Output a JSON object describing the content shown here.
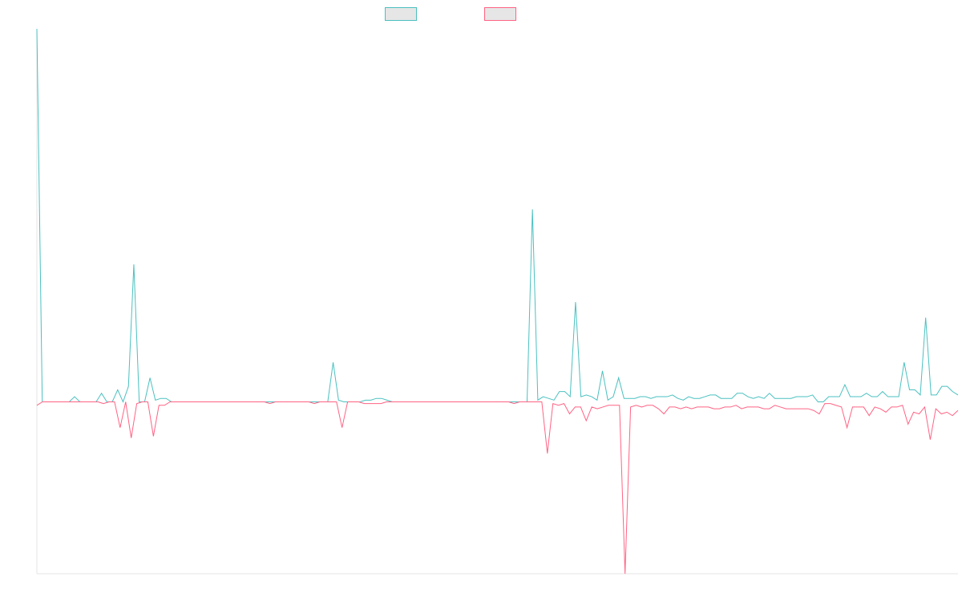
{
  "chart_data": {
    "type": "line",
    "title": "",
    "xlabel": "",
    "ylabel": "",
    "grid": false,
    "legend_position": "top-center",
    "ylim": [
      -100,
      217
    ],
    "series": [
      {
        "color": "#4bc0c0",
        "values": [
          217,
          0,
          0,
          0,
          0,
          0,
          0,
          3,
          0,
          0,
          0,
          0,
          5,
          0,
          0,
          7,
          0,
          9,
          80,
          0,
          0,
          14,
          1,
          2,
          2,
          0,
          0,
          0,
          0,
          0,
          0,
          0,
          0,
          0,
          0,
          0,
          0,
          0,
          0,
          0,
          0,
          0,
          0,
          0,
          0,
          0,
          0,
          0,
          0,
          0,
          0,
          0,
          0,
          0,
          0,
          23,
          1,
          0,
          0,
          0,
          0,
          1,
          1,
          2,
          2,
          1,
          0,
          0,
          0,
          0,
          0,
          0,
          0,
          0,
          0,
          0,
          0,
          0,
          0,
          0,
          0,
          0,
          0,
          0,
          0,
          0,
          0,
          0,
          0,
          0,
          0,
          0,
          112,
          1,
          3,
          2,
          1,
          6,
          6,
          3,
          58,
          3,
          4,
          3,
          1,
          18,
          1,
          3,
          14,
          2,
          2,
          2,
          3,
          3,
          2,
          3,
          3,
          3,
          4,
          2,
          1,
          3,
          2,
          2,
          3,
          4,
          4,
          2,
          2,
          2,
          5,
          5,
          3,
          2,
          3,
          2,
          5,
          2,
          2,
          2,
          2,
          3,
          3,
          3,
          4,
          0,
          0,
          3,
          3,
          3,
          10,
          3,
          3,
          3,
          5,
          3,
          3,
          6,
          3,
          3,
          3,
          23,
          7,
          7,
          4,
          49,
          4,
          4,
          9,
          9,
          6,
          4
        ]
      },
      {
        "color": "#ff6384",
        "values": [
          -2,
          0,
          0,
          0,
          0,
          0,
          0,
          0,
          0,
          0,
          0,
          0,
          -1,
          0,
          0,
          -15,
          0,
          -21,
          -1,
          0,
          0,
          -20,
          -2,
          -2,
          0,
          0,
          0,
          0,
          0,
          0,
          0,
          0,
          0,
          0,
          0,
          0,
          0,
          0,
          0,
          0,
          0,
          0,
          -1,
          0,
          0,
          0,
          0,
          0,
          0,
          0,
          -1,
          0,
          0,
          0,
          0,
          -15,
          0,
          0,
          0,
          -1,
          -1,
          -1,
          -1,
          0,
          0,
          0,
          0,
          0,
          0,
          0,
          0,
          0,
          0,
          0,
          0,
          0,
          0,
          0,
          0,
          0,
          0,
          0,
          0,
          0,
          0,
          0,
          -1,
          0,
          0,
          0,
          0,
          0,
          -30,
          -1,
          -2,
          -1,
          -7,
          -3,
          -3,
          -11,
          -3,
          -4,
          -3,
          -2,
          -2,
          -2,
          -100,
          -3,
          -2,
          -3,
          -2,
          -2,
          -4,
          -7,
          -3,
          -3,
          -4,
          -3,
          -4,
          -3,
          -3,
          -3,
          -4,
          -4,
          -3,
          -3,
          -2,
          -4,
          -3,
          -3,
          -3,
          -4,
          -4,
          -2,
          -3,
          -4,
          -4,
          -4,
          -4,
          -4,
          -5,
          -7,
          -1,
          -1,
          -2,
          -3,
          -15,
          -3,
          -3,
          -3,
          -8,
          -3,
          -4,
          -6,
          -3,
          -3,
          -2,
          -13,
          -6,
          -7,
          -3,
          -22,
          -4,
          -7,
          -6,
          -8,
          -5
        ]
      }
    ]
  }
}
